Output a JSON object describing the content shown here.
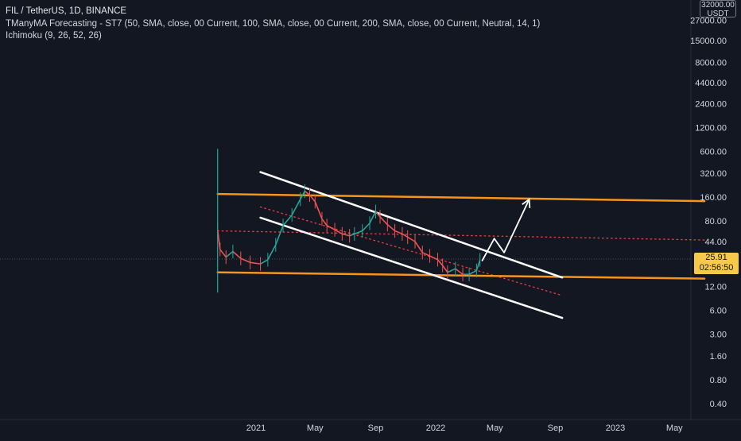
{
  "legend": {
    "symbol": "FIL / TetherUS, 1D, BINANCE",
    "indicator_1": "TManyMA Forecasting - ST7 (50, SMA, close, 00 Current, 100, SMA, close, 00 Current, 200, SMA, close, 00 Current, Neutral, 14, 1)",
    "indicator_2": "Ichimoku (9, 26, 52, 26)"
  },
  "price_axis": {
    "unit_top": "32000.00",
    "unit": "USDT",
    "ticks": [
      "27000.00",
      "15000.00",
      "8000.00",
      "4400.00",
      "2400.00",
      "1200.00",
      "600.00",
      "320.00",
      "160.00",
      "80.00",
      "44.00",
      "12.00",
      "6.00",
      "3.00",
      "1.60",
      "0.80",
      "0.40"
    ]
  },
  "current_price": {
    "value": "25.91",
    "countdown": "02:56:50"
  },
  "time_axis": {
    "ticks": [
      "2021",
      "May",
      "Sep",
      "2022",
      "May",
      "Sep",
      "2023",
      "May"
    ]
  },
  "colors": {
    "background": "#131722",
    "axis_text": "#d1d4dc",
    "up_candle": "#26a69a",
    "down_candle": "#ef5350",
    "channel_line": "#ffffff",
    "support_resistance": "#f7941d",
    "ma_dotted": "#e03b3b",
    "price_badge": "#f7c948"
  },
  "chart_data": {
    "type": "line",
    "scale": "log",
    "symbol": "FIL / TetherUS",
    "interval": "1D",
    "exchange": "BINANCE",
    "ylim": [
      0.3,
      32000
    ],
    "x_range": [
      "2020-10-15",
      "2023-07-01"
    ],
    "series": [
      {
        "name": "FIL / TetherUS",
        "x": [
          "2020-10-15",
          "2020-10-20",
          "2020-11-01",
          "2020-11-15",
          "2020-12-01",
          "2020-12-20",
          "2021-01-10",
          "2021-01-25",
          "2021-02-10",
          "2021-02-25",
          "2021-03-15",
          "2021-04-01",
          "2021-04-10",
          "2021-04-20",
          "2021-05-01",
          "2021-05-15",
          "2021-05-25",
          "2021-06-10",
          "2021-06-25",
          "2021-07-10",
          "2021-07-20",
          "2021-08-05",
          "2021-08-20",
          "2021-09-01",
          "2021-09-10",
          "2021-09-25",
          "2021-10-10",
          "2021-10-25",
          "2021-11-05",
          "2021-11-20",
          "2021-12-05",
          "2021-12-20",
          "2022-01-05",
          "2022-01-15",
          "2022-01-25",
          "2022-02-10",
          "2022-02-25",
          "2022-03-10",
          "2022-03-25",
          "2022-04-01"
        ],
        "values": [
          62,
          35,
          28,
          33,
          27,
          24,
          23,
          26,
          40,
          70,
          95,
          150,
          190,
          170,
          140,
          85,
          70,
          62,
          55,
          52,
          55,
          60,
          75,
          105,
          90,
          72,
          60,
          55,
          50,
          44,
          32,
          29,
          26,
          22,
          18,
          20,
          17,
          17,
          19,
          25.91
        ]
      }
    ],
    "drawings": {
      "resistance": {
        "start": [
          "2020-10-15",
          175
        ],
        "end": [
          "2023-07-01",
          142
        ]
      },
      "support": {
        "start": [
          "2020-10-15",
          18
        ],
        "end": [
          "2023-07-01",
          15
        ]
      },
      "channel_upper": {
        "start": [
          "2021-01-10",
          330
        ],
        "end": [
          "2022-09-15",
          15.5
        ]
      },
      "channel_lower": {
        "start": [
          "2021-01-10",
          88
        ],
        "end": [
          "2022-09-15",
          4.8
        ]
      },
      "ma_dotted_1": {
        "start": [
          "2020-10-15",
          60
        ],
        "end": [
          "2023-07-01",
          46
        ]
      },
      "ma_dotted_2": {
        "start": [
          "2021-01-10",
          120
        ],
        "end": [
          "2022-09-15",
          9.2
        ]
      },
      "projection": {
        "points": [
          [
            "2022-04-05",
            25
          ],
          [
            "2022-04-30",
            48
          ],
          [
            "2022-05-20",
            32
          ],
          [
            "2022-07-10",
            150
          ]
        ]
      }
    },
    "grid": false
  }
}
